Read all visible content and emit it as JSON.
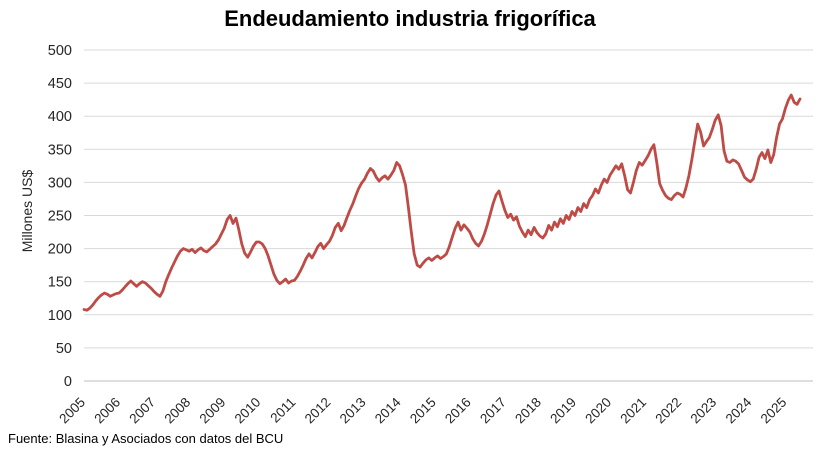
{
  "chart": {
    "title": "Endeudamiento industria frigorífica",
    "y_axis_title": "Millones US$",
    "source_note": "Fuente: Blasina y Asociados con datos del BCU"
  },
  "style": {
    "line_color": "#BE4B45",
    "grid_color": "#D9D9D9",
    "axis_line_color": "#BFBFBF",
    "axis_text_color": "#262626",
    "title_color": "#000000",
    "background": "#FFFFFF"
  },
  "chart_data": {
    "type": "line",
    "title": "Endeudamiento industria frigorífica",
    "xlabel": "",
    "ylabel": "Millones US$",
    "ylim": [
      0,
      500
    ],
    "y_ticks": [
      0,
      50,
      100,
      150,
      200,
      250,
      300,
      350,
      400,
      450,
      500
    ],
    "x_tick_labels": [
      "2005",
      "2006",
      "2007",
      "2008",
      "2009",
      "2010",
      "2011",
      "2012",
      "2013",
      "2014",
      "2015",
      "2016",
      "2017",
      "2018",
      "2019",
      "2020",
      "2021",
      "2022",
      "2023",
      "2024",
      "2025"
    ],
    "grid": "horizontal",
    "legend": "none",
    "frequency": "monthly",
    "start": "2005-01",
    "end": "2025-06",
    "series": [
      {
        "name": "Endeudamiento industria frigorífica (Millones US$)",
        "values": [
          108,
          107,
          110,
          115,
          121,
          126,
          130,
          133,
          131,
          128,
          130,
          132,
          133,
          137,
          142,
          147,
          151,
          147,
          143,
          147,
          150,
          148,
          144,
          140,
          135,
          131,
          128,
          136,
          150,
          161,
          171,
          180,
          189,
          196,
          200,
          198,
          196,
          199,
          194,
          198,
          201,
          197,
          195,
          199,
          203,
          207,
          213,
          222,
          231,
          244,
          250,
          238,
          246,
          228,
          207,
          193,
          187,
          195,
          204,
          210,
          210,
          207,
          200,
          189,
          175,
          161,
          152,
          147,
          150,
          154,
          148,
          151,
          152,
          158,
          166,
          175,
          185,
          192,
          186,
          194,
          203,
          208,
          200,
          206,
          211,
          220,
          232,
          238,
          227,
          235,
          247,
          258,
          268,
          280,
          291,
          299,
          305,
          314,
          321,
          317,
          308,
          302,
          307,
          310,
          305,
          311,
          318,
          330,
          325,
          312,
          296,
          262,
          225,
          192,
          175,
          172,
          178,
          183,
          186,
          182,
          186,
          189,
          185,
          188,
          192,
          203,
          217,
          231,
          240,
          228,
          236,
          231,
          225,
          215,
          208,
          204,
          211,
          222,
          236,
          252,
          268,
          281,
          287,
          272,
          258,
          247,
          252,
          243,
          248,
          234,
          225,
          218,
          228,
          221,
          232,
          224,
          219,
          216,
          222,
          235,
          228,
          240,
          233,
          245,
          238,
          250,
          244,
          256,
          250,
          262,
          256,
          268,
          262,
          274,
          280,
          290,
          284,
          296,
          305,
          300,
          311,
          318,
          325,
          320,
          328,
          310,
          289,
          284,
          300,
          318,
          330,
          326,
          333,
          340,
          350,
          357,
          330,
          298,
          288,
          280,
          276,
          274,
          280,
          284,
          282,
          278,
          292,
          310,
          335,
          362,
          388,
          376,
          355,
          362,
          368,
          380,
          394,
          402,
          386,
          348,
          332,
          330,
          334,
          332,
          328,
          318,
          308,
          304,
          301,
          305,
          320,
          338,
          345,
          336,
          349,
          330,
          342,
          368,
          388,
          396,
          412,
          424,
          432,
          421,
          418,
          426
        ]
      }
    ]
  }
}
